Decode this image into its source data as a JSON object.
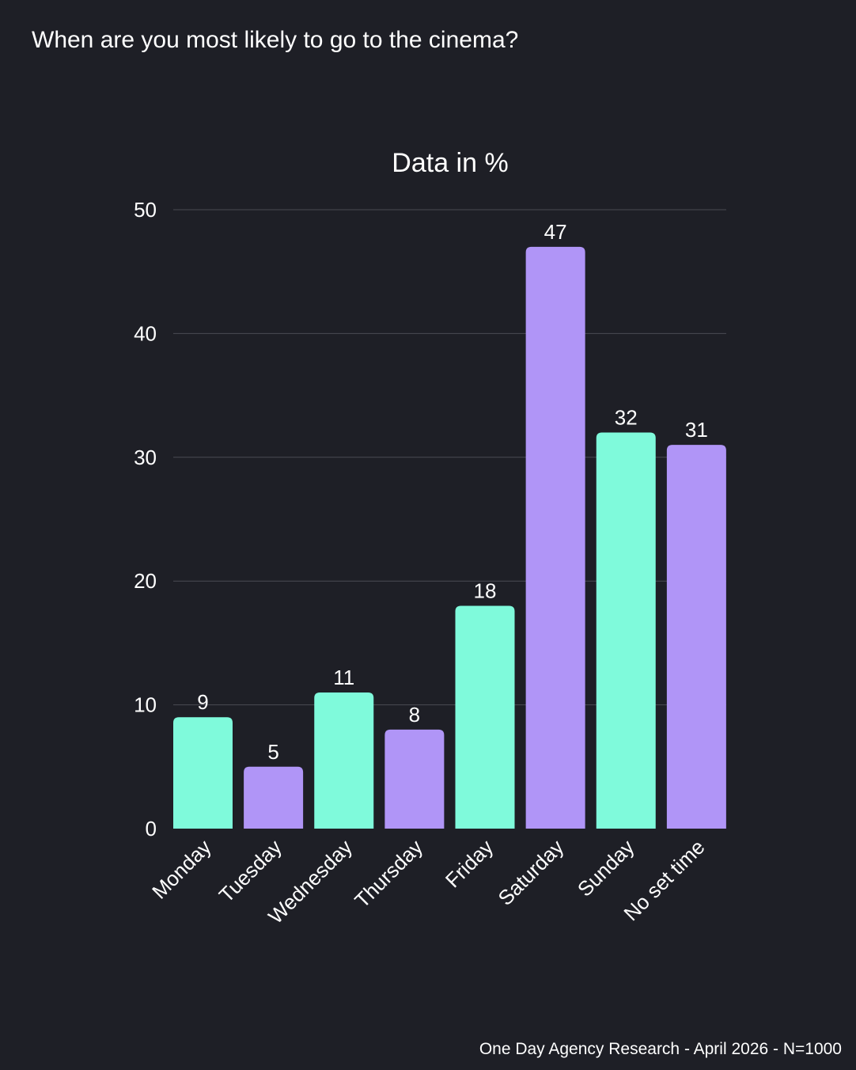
{
  "question": "When are you most likely to go to the cinema?",
  "source": "One Day Agency Research - April 2026 - N=1000",
  "colors": {
    "background": "#1e1f26",
    "mint": "#7ffadb",
    "purple": "#b095f7",
    "grid": "#4a4b53"
  },
  "chart_data": {
    "type": "bar",
    "title": "Data in %",
    "categories": [
      "Monday",
      "Tuesday",
      "Wednesday",
      "Thursday",
      "Friday",
      "Saturday",
      "Sunday",
      "No set time"
    ],
    "values": [
      9,
      5,
      11,
      8,
      18,
      47,
      32,
      31
    ],
    "bar_colors": [
      "#7ffadb",
      "#b095f7",
      "#7ffadb",
      "#b095f7",
      "#7ffadb",
      "#b095f7",
      "#7ffadb",
      "#b095f7"
    ],
    "ylim": [
      0,
      50
    ],
    "yticks": [
      0,
      10,
      20,
      30,
      40,
      50
    ],
    "grid": true,
    "xlabel": "",
    "ylabel": ""
  }
}
